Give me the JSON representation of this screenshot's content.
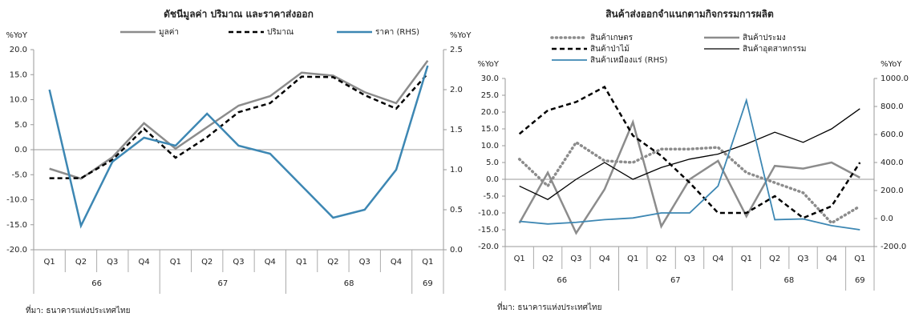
{
  "chart_data": [
    {
      "type": "line",
      "title": "ดัชนีมูลค่า ปริมาณ และราคาส่งออก",
      "y_label": "%YoY",
      "y2_label": "%YoY",
      "source": "ที่มา: ธนาคารแห่งประเทศไทย",
      "categories": [
        "Q1",
        "Q2",
        "Q3",
        "Q4",
        "Q1",
        "Q2",
        "Q3",
        "Q4",
        "Q1",
        "Q2",
        "Q3",
        "Q4",
        "Q1"
      ],
      "years": [
        "66",
        "66",
        "66",
        "66",
        "67",
        "67",
        "67",
        "67",
        "68",
        "68",
        "68",
        "68",
        "69"
      ],
      "ylim": [
        -20,
        20
      ],
      "yticks": [
        {
          "value": 20,
          "label": "20.0"
        },
        {
          "value": 15,
          "label": "15.0"
        },
        {
          "value": 10,
          "label": "10.0"
        },
        {
          "value": 5,
          "label": "5.0"
        },
        {
          "value": 0,
          "label": "0.0"
        },
        {
          "value": -5,
          "label": "-5.0"
        },
        {
          "value": -10,
          "label": "-10.0"
        },
        {
          "value": -15,
          "label": "-15.0"
        },
        {
          "value": -20,
          "label": "-20.0"
        }
      ],
      "y2lim": [
        0,
        2.5
      ],
      "y2ticks": [
        {
          "value": 2.5,
          "label": "2.5"
        },
        {
          "value": 2,
          "label": "2.0"
        },
        {
          "value": 1.5,
          "label": "1.5"
        },
        {
          "value": 1,
          "label": "1.0"
        },
        {
          "value": 0.5,
          "label": "0.5"
        },
        {
          "value": 0,
          "label": "0.0"
        }
      ],
      "negative_tick_color": "#e03030",
      "zero_line": true,
      "legend_columns": 3,
      "series": [
        {
          "name": "มูลค่า",
          "color": "#8c8c8c",
          "dash": "solid",
          "width": 2.5,
          "values": [
            -3.8,
            -5.8,
            -1.5,
            5.3,
            0.2,
            4.5,
            8.8,
            10.7,
            15.4,
            14.8,
            11.5,
            9.3,
            17.8
          ]
        },
        {
          "name": "ปริมาณ",
          "color": "#000000",
          "dash": "dashed",
          "width": 2.5,
          "values": [
            -5.7,
            -5.7,
            -2.0,
            4.2,
            -1.6,
            2.5,
            7.5,
            9.3,
            14.6,
            14.5,
            10.9,
            8.2,
            15.2
          ]
        },
        {
          "name": "ราคา (RHS)",
          "color": "#3d87b3",
          "dash": "solid",
          "width": 2.5,
          "axis": "y2",
          "values": [
            2.0,
            0.3,
            1.1,
            1.4,
            1.3,
            1.7,
            1.3,
            1.2,
            0.8,
            0.4,
            0.5,
            1.0,
            2.3
          ]
        }
      ]
    },
    {
      "type": "line",
      "title": "สินค้าส่งออกจำแนกตามกิจกรรมการผลิต",
      "y_label": "%YoY",
      "y2_label": "%YoY",
      "source": "ที่มา: ธนาคารแห่งประเทศไทย",
      "categories": [
        "Q1",
        "Q2",
        "Q3",
        "Q4",
        "Q1",
        "Q2",
        "Q3",
        "Q4",
        "Q1",
        "Q2",
        "Q3",
        "Q4",
        "Q1"
      ],
      "years": [
        "66",
        "66",
        "66",
        "66",
        "67",
        "67",
        "67",
        "67",
        "68",
        "68",
        "68",
        "68",
        "69"
      ],
      "ylim": [
        -20,
        30
      ],
      "yticks": [
        {
          "value": 30,
          "label": "30.0"
        },
        {
          "value": 25,
          "label": "25.0"
        },
        {
          "value": 20,
          "label": "20.0"
        },
        {
          "value": 15,
          "label": "15.0"
        },
        {
          "value": 10,
          "label": "10.0"
        },
        {
          "value": 5,
          "label": "5.0"
        },
        {
          "value": 0,
          "label": "0.0"
        },
        {
          "value": -5,
          "label": "-5.0"
        },
        {
          "value": -10,
          "label": "-10.0"
        },
        {
          "value": -15,
          "label": "-15.0"
        },
        {
          "value": -20,
          "label": "-20.0"
        }
      ],
      "y2lim": [
        -200,
        1000
      ],
      "y2ticks": [
        {
          "value": 1000,
          "label": "1000.0"
        },
        {
          "value": 800,
          "label": "800.0"
        },
        {
          "value": 600,
          "label": "600.0"
        },
        {
          "value": 400,
          "label": "400.0"
        },
        {
          "value": 200,
          "label": "200.0"
        },
        {
          "value": 0,
          "label": "0.0"
        },
        {
          "value": -200,
          "label": "-200.0"
        }
      ],
      "negative_tick_color": "#e03030",
      "zero_line": true,
      "legend_columns": 2,
      "series": [
        {
          "name": "สินค้าเกษตร",
          "color": "#8c8c8c",
          "dash": "dotted",
          "width": 3.5,
          "values": [
            6,
            -2,
            11,
            5.5,
            5,
            9,
            9,
            9.5,
            2,
            -1,
            -4,
            -13,
            -8
          ]
        },
        {
          "name": "สินค้าประมง",
          "color": "#8c8c8c",
          "dash": "solid",
          "width": 2.5,
          "values": [
            -13,
            2,
            -16,
            -3,
            17,
            -14,
            0,
            5.5,
            -11,
            4,
            3.2,
            5,
            0.5
          ]
        },
        {
          "name": "สินค้าป่าไม้",
          "color": "#000000",
          "dash": "dashed",
          "width": 2.5,
          "values": [
            13.5,
            20.5,
            23,
            27.5,
            13,
            7,
            -1,
            -10,
            -10,
            -5,
            -11.5,
            -8,
            5
          ]
        },
        {
          "name": "สินค้าอุตสาหกรรม",
          "color": "#000000",
          "dash": "solid",
          "width": 1.3,
          "values": [
            -2,
            -6,
            0,
            5,
            0,
            3.5,
            6,
            7.5,
            10.5,
            14,
            11,
            15,
            21
          ]
        },
        {
          "name": "สินค้าเหมืองแร่ (RHS)",
          "color": "#3d87b3",
          "dash": "solid",
          "width": 1.8,
          "axis": "y2",
          "values": [
            -20,
            -39,
            -27,
            -8,
            4,
            40,
            40,
            232,
            844,
            -8,
            -3,
            -51,
            -80
          ]
        }
      ]
    }
  ]
}
